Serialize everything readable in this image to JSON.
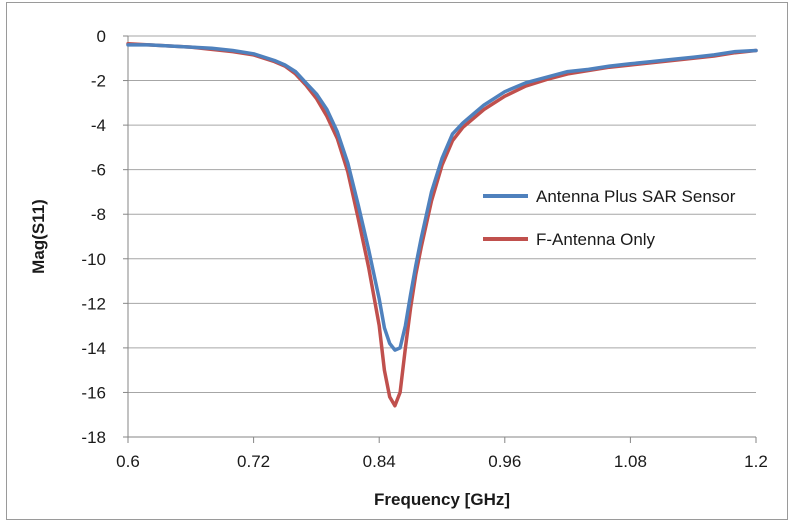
{
  "chart_data": {
    "type": "line",
    "title": "",
    "xlabel": "Frequency [GHz]",
    "ylabel": "Mag(S11)",
    "xlim": [
      0.6,
      1.2
    ],
    "ylim": [
      -18,
      0
    ],
    "xticks": [
      0.6,
      0.72,
      0.84,
      0.96,
      1.08,
      1.2
    ],
    "yticks": [
      0,
      -2,
      -4,
      -6,
      -8,
      -10,
      -12,
      -14,
      -16,
      -18
    ],
    "grid": "horizontal",
    "legend_position": "right",
    "series": [
      {
        "name": "Antenna Plus SAR Sensor",
        "color": "#4f81bd",
        "x": [
          0.6,
          0.62,
          0.64,
          0.66,
          0.68,
          0.7,
          0.72,
          0.74,
          0.75,
          0.76,
          0.77,
          0.78,
          0.79,
          0.8,
          0.81,
          0.82,
          0.83,
          0.84,
          0.845,
          0.85,
          0.855,
          0.86,
          0.865,
          0.87,
          0.875,
          0.88,
          0.89,
          0.9,
          0.91,
          0.92,
          0.93,
          0.94,
          0.96,
          0.98,
          1.0,
          1.02,
          1.04,
          1.06,
          1.08,
          1.1,
          1.12,
          1.14,
          1.16,
          1.18,
          1.2
        ],
        "values": [
          -0.4,
          -0.4,
          -0.45,
          -0.5,
          -0.55,
          -0.65,
          -0.8,
          -1.1,
          -1.3,
          -1.6,
          -2.1,
          -2.6,
          -3.3,
          -4.3,
          -5.7,
          -7.6,
          -9.6,
          -11.8,
          -13.1,
          -13.8,
          -14.1,
          -14.0,
          -13.0,
          -11.6,
          -10.3,
          -9.1,
          -7.0,
          -5.5,
          -4.4,
          -3.9,
          -3.5,
          -3.1,
          -2.5,
          -2.1,
          -1.85,
          -1.6,
          -1.5,
          -1.35,
          -1.25,
          -1.15,
          -1.05,
          -0.95,
          -0.85,
          -0.7,
          -0.65
        ]
      },
      {
        "name": "F-Antenna Only",
        "color": "#c0504d",
        "x": [
          0.6,
          0.62,
          0.64,
          0.66,
          0.68,
          0.7,
          0.72,
          0.74,
          0.75,
          0.76,
          0.77,
          0.78,
          0.79,
          0.8,
          0.81,
          0.82,
          0.83,
          0.84,
          0.845,
          0.85,
          0.855,
          0.86,
          0.865,
          0.87,
          0.875,
          0.88,
          0.89,
          0.9,
          0.91,
          0.92,
          0.93,
          0.94,
          0.96,
          0.98,
          1.0,
          1.02,
          1.04,
          1.06,
          1.08,
          1.1,
          1.12,
          1.14,
          1.16,
          1.18,
          1.2
        ],
        "values": [
          -0.35,
          -0.4,
          -0.45,
          -0.5,
          -0.6,
          -0.7,
          -0.85,
          -1.15,
          -1.35,
          -1.7,
          -2.2,
          -2.8,
          -3.6,
          -4.6,
          -6.1,
          -8.2,
          -10.4,
          -13.0,
          -15.0,
          -16.2,
          -16.6,
          -16.0,
          -14.0,
          -12.2,
          -10.7,
          -9.5,
          -7.4,
          -5.8,
          -4.7,
          -4.1,
          -3.7,
          -3.3,
          -2.7,
          -2.25,
          -1.95,
          -1.7,
          -1.55,
          -1.4,
          -1.3,
          -1.2,
          -1.1,
          -1.0,
          -0.9,
          -0.75,
          -0.65
        ]
      }
    ]
  }
}
